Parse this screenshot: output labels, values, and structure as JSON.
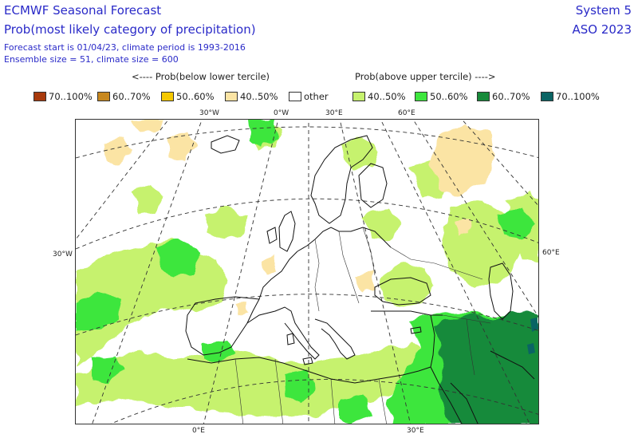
{
  "header": {
    "title": "ECMWF Seasonal Forecast",
    "subtitle": "Prob(most likely category of precipitation)",
    "line1": "Forecast start is 01/04/23, climate period is 1993-2016",
    "line2": "Ensemble size = 51, climate size = 600",
    "system": "System 5",
    "season": "ASO 2023"
  },
  "legend": {
    "below_label": "<---- Prob(below lower tercile)",
    "above_label": "Prob(above upper tercile) ---->",
    "items": [
      {
        "label": "70..100%",
        "color": "#a83a0c"
      },
      {
        "label": "60..70%",
        "color": "#c8881e"
      },
      {
        "label": "50..60%",
        "color": "#f5c800"
      },
      {
        "label": "40..50%",
        "color": "#fbe4a4"
      },
      {
        "label": "other",
        "color": "#ffffff"
      },
      {
        "label": "40..50%",
        "color": "#c6f26e"
      },
      {
        "label": "50..60%",
        "color": "#3ee63e"
      },
      {
        "label": "60..70%",
        "color": "#178a3a"
      },
      {
        "label": "70..100%",
        "color": "#0a6464"
      }
    ]
  },
  "map": {
    "ticks_top": [
      "30°W",
      "0°W",
      "30°E",
      "60°E"
    ],
    "ticks_bottom": [
      "0°E",
      "30°E"
    ],
    "tick_left": "30°W",
    "tick_right": "60°E"
  }
}
